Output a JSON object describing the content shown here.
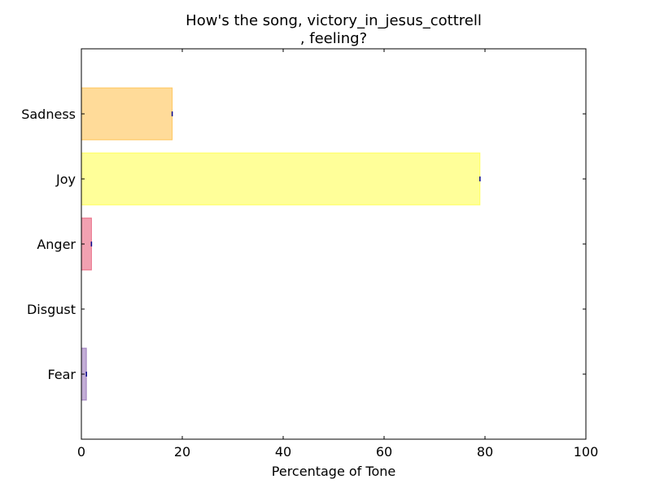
{
  "chart_data": {
    "type": "bar",
    "orientation": "horizontal",
    "title_line1": "How's the song, victory_in_jesus_cottrell",
    "title_line2": ", feeling?",
    "xlabel": "Percentage of Tone",
    "ylabel": "",
    "xlim": [
      0,
      100
    ],
    "xticks": [
      0,
      20,
      40,
      60,
      80,
      100
    ],
    "grid": false,
    "categories": [
      "Sadness",
      "Joy",
      "Anger",
      "Disgust",
      "Fear"
    ],
    "values": [
      18,
      79,
      2,
      0,
      1
    ],
    "colors": [
      "#ffa500",
      "#ffff00",
      "#dc143c",
      "#228b22",
      "#663399"
    ],
    "error_marker_color": "#00008b"
  }
}
